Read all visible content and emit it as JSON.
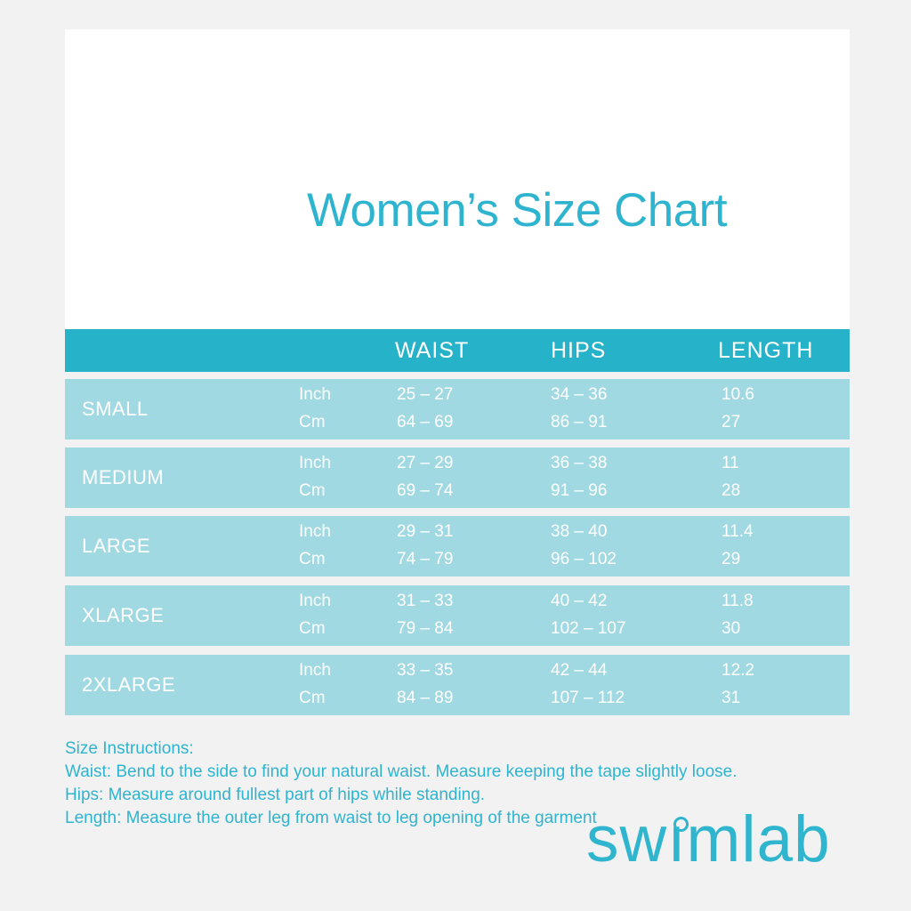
{
  "title": "Women’s Size Chart",
  "colors": {
    "background": "#f2f2f2",
    "panel": "#ffffff",
    "header_bar": "#26b2c9",
    "row_background": "#a1d9e3",
    "accent_text": "#2fb4cf",
    "table_text": "#ffffff",
    "logo": "#30b5cf"
  },
  "table": {
    "headers": {
      "waist": "WAIST",
      "hips": "HIPS",
      "length": "LENGTH"
    },
    "unit_labels": {
      "inch": "Inch",
      "cm": "Cm"
    },
    "rows": [
      {
        "size": "SMALL",
        "inch": {
          "label": "Inch",
          "waist": "25 – 27",
          "hips": "34 – 36",
          "length": "10.6"
        },
        "cm": {
          "label": "Cm",
          "waist": "64 – 69",
          "hips": "86 – 91",
          "length": "27"
        }
      },
      {
        "size": "MEDIUM",
        "inch": {
          "label": "Inch",
          "waist": "27 – 29",
          "hips": "36 – 38",
          "length": "11"
        },
        "cm": {
          "label": "Cm",
          "waist": "69 – 74",
          "hips": "91 – 96",
          "length": "28"
        }
      },
      {
        "size": "LARGE",
        "inch": {
          "label": "Inch",
          "waist": "29 – 31",
          "hips": "38 – 40",
          "length": "11.4"
        },
        "cm": {
          "label": "Cm",
          "waist": "74 – 79",
          "hips": "96 – 102",
          "length": "29"
        }
      },
      {
        "size": "XLARGE",
        "inch": {
          "label": "Inch",
          "waist": "31 – 33",
          "hips": "40 – 42",
          "length": "11.8"
        },
        "cm": {
          "label": "Cm",
          "waist": "79 – 84",
          "hips": "102 – 107",
          "length": "30"
        }
      },
      {
        "size": "2XLARGE",
        "inch": {
          "label": "Inch",
          "waist": "33 – 35",
          "hips": "42 – 44",
          "length": "12.2"
        },
        "cm": {
          "label": "Cm",
          "waist": "84 – 89",
          "hips": "107 – 112",
          "length": "31"
        }
      }
    ]
  },
  "instructions": {
    "heading": "Size Instructions:",
    "waist_line": "Waist: Bend to the side to find your natural waist. Measure keeping the tape slightly loose.",
    "hips_line": "Hips: Measure around fullest part of hips while standing.",
    "length_line": "Length: Measure the outer leg from waist to leg opening of the garment"
  },
  "logo": {
    "text": "swimlab",
    "part_before_i": "sw",
    "dotless_i": "ı",
    "part_after_i": "mlab"
  }
}
